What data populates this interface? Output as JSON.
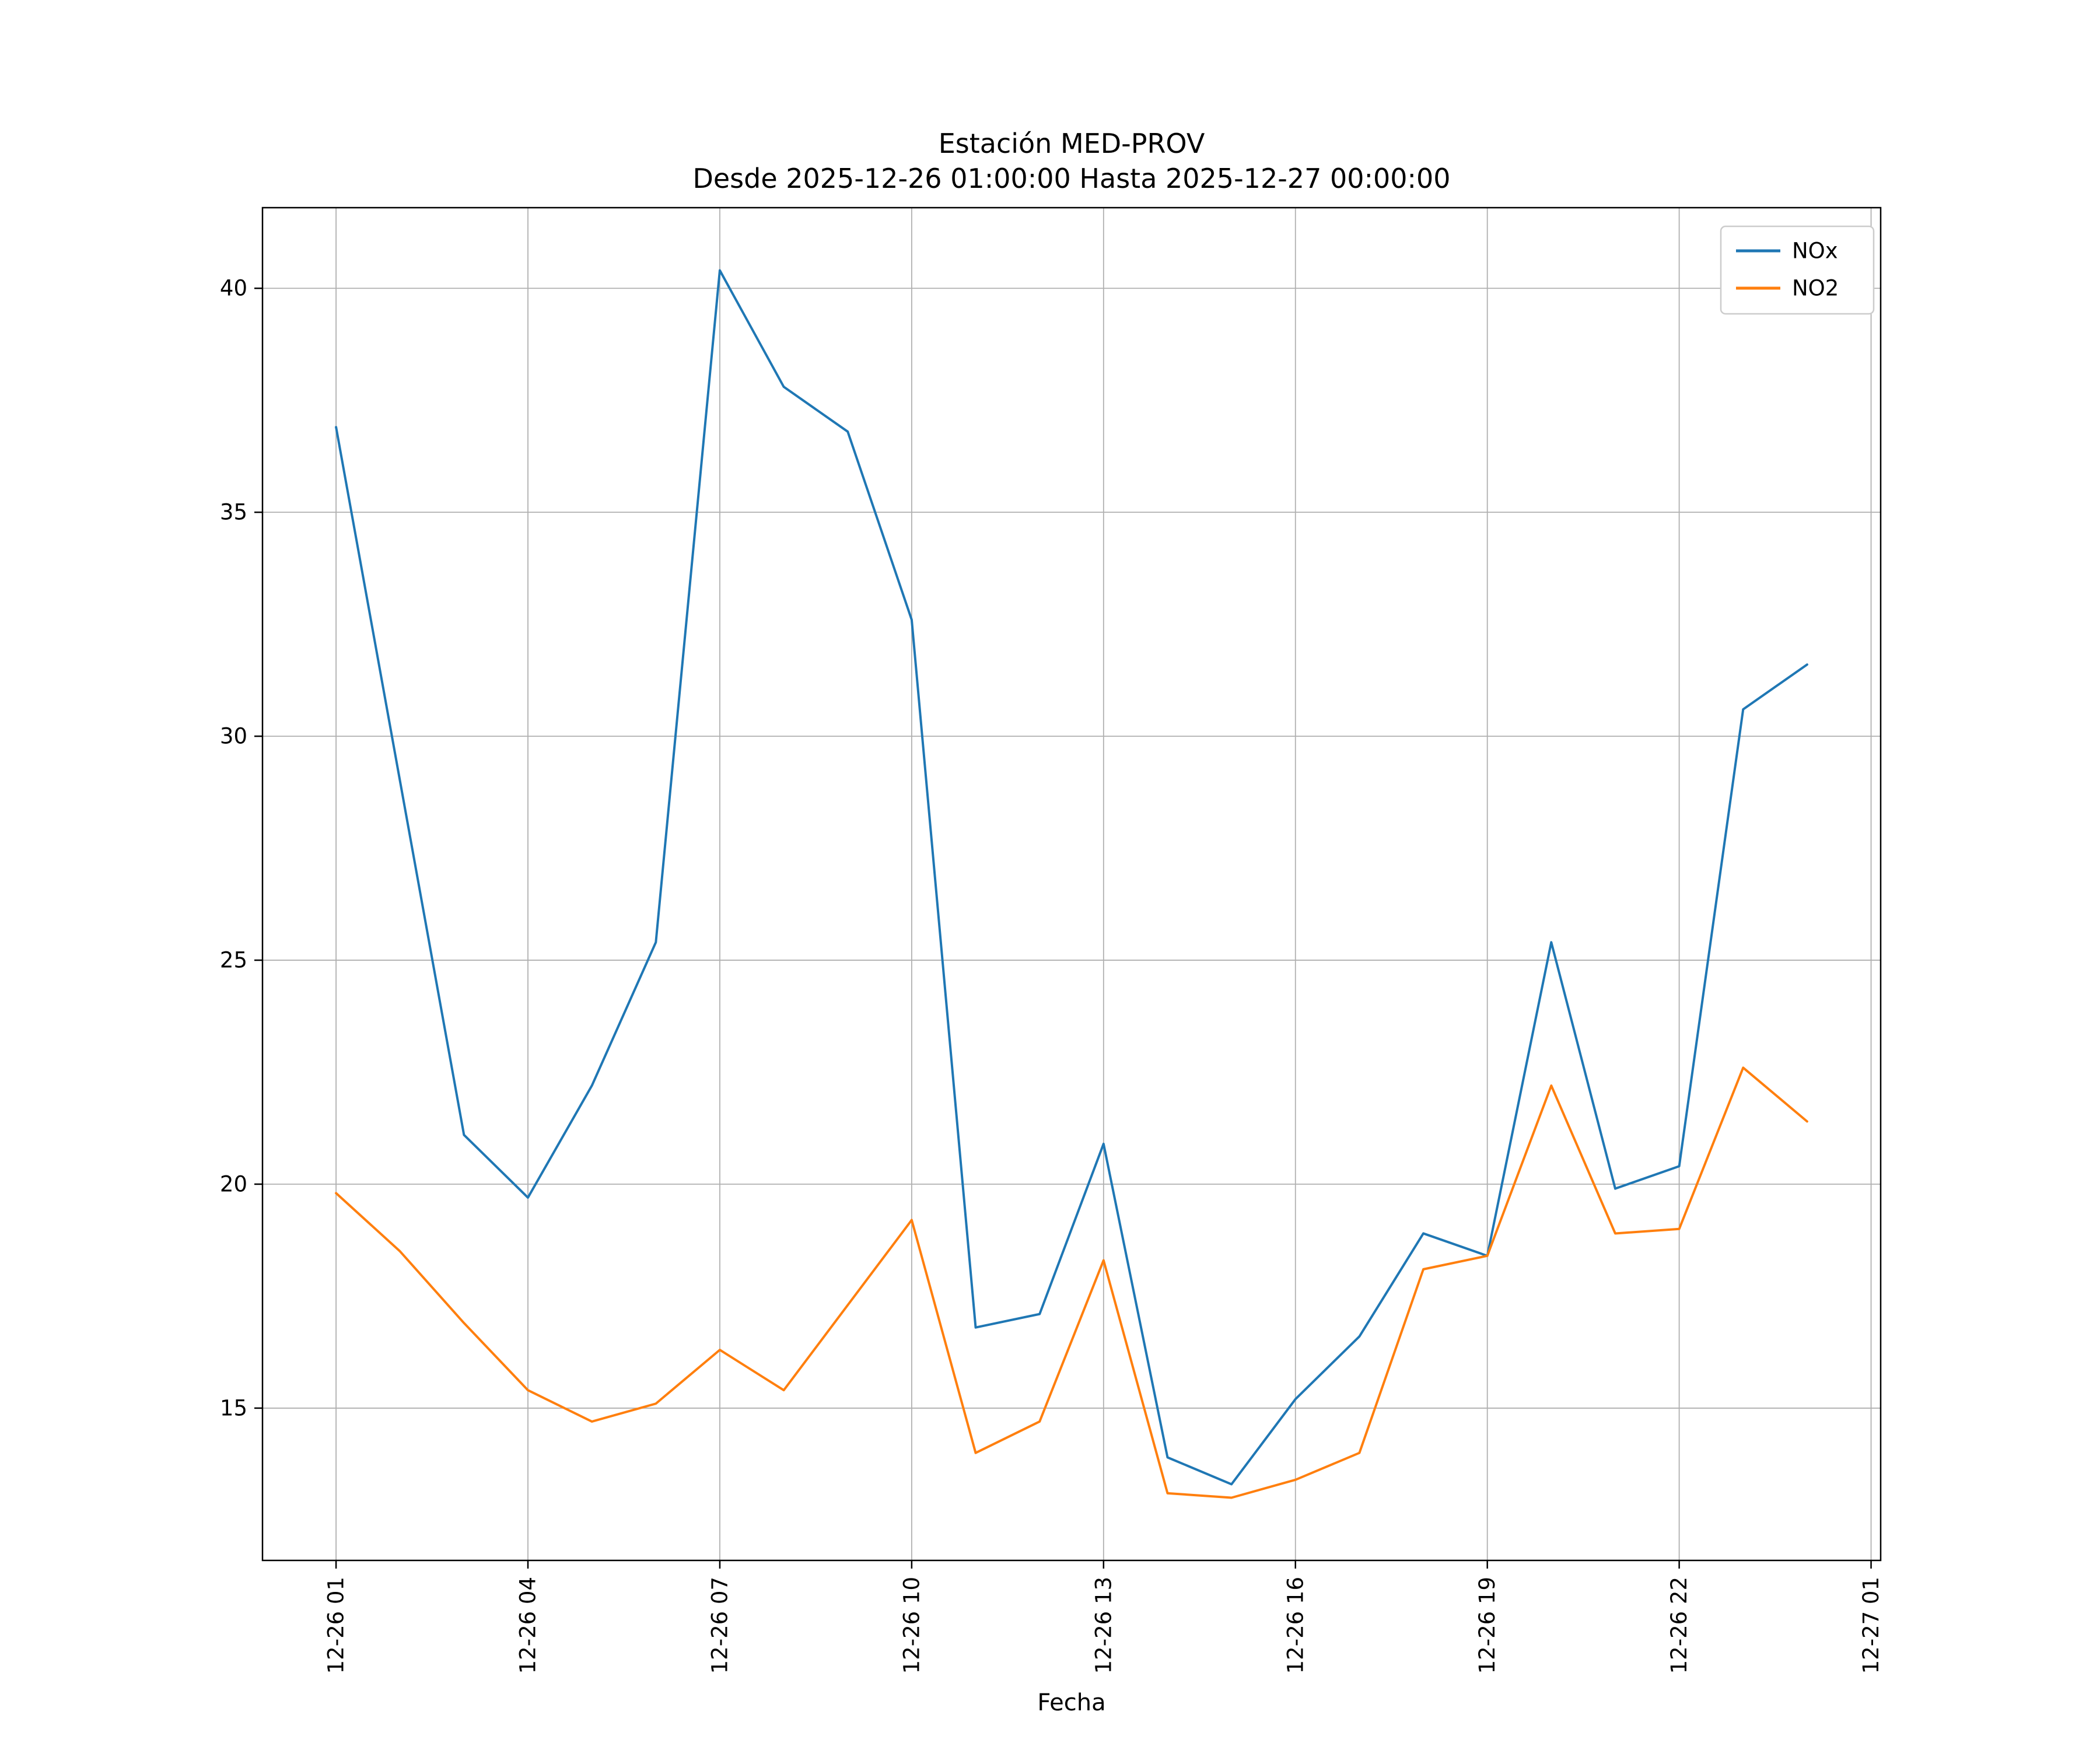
{
  "figure": {
    "title_line1": "Estación MED-PROV",
    "title_line2": "Desde 2025-12-26 01:00:00 Hasta 2025-12-27 00:00:00",
    "xlabel": "Fecha"
  },
  "chart_data": {
    "type": "line",
    "title": "Estación MED-PROV",
    "subtitle": "Desde 2025-12-26 01:00:00 Hasta 2025-12-27 00:00:00",
    "xlabel": "Fecha",
    "ylabel": "",
    "grid": true,
    "legend_position": "upper right",
    "xlim": [
      -0.15,
      25.15
    ],
    "ylim": [
      11.6,
      41.8
    ],
    "x_hours": [
      1,
      2,
      3,
      4,
      5,
      6,
      7,
      8,
      9,
      10,
      11,
      12,
      13,
      14,
      15,
      16,
      17,
      18,
      19,
      20,
      21,
      22,
      23,
      24
    ],
    "x_tick_hours": [
      1,
      4,
      7,
      10,
      13,
      16,
      19,
      22,
      25
    ],
    "x_tick_labels": [
      "12-26 01",
      "12-26 04",
      "12-26 07",
      "12-26 10",
      "12-26 13",
      "12-26 16",
      "12-26 19",
      "12-26 22",
      "12-27 01"
    ],
    "y_ticks": [
      15,
      20,
      25,
      30,
      35,
      40
    ],
    "grid_color": "#b0b0b0",
    "series": [
      {
        "name": "NOx",
        "color": "#1f77b4",
        "values": [
          36.9,
          29.0,
          21.1,
          19.7,
          22.2,
          25.4,
          40.4,
          37.8,
          36.8,
          32.6,
          16.8,
          17.1,
          20.9,
          13.9,
          13.3,
          15.2,
          16.6,
          18.9,
          18.4,
          25.4,
          19.9,
          20.4,
          30.6,
          31.6
        ]
      },
      {
        "name": "NO2",
        "color": "#ff7f0e",
        "values": [
          19.8,
          18.5,
          16.9,
          15.4,
          14.7,
          15.1,
          16.3,
          15.4,
          17.3,
          19.2,
          14.0,
          14.7,
          18.3,
          13.1,
          13.0,
          13.4,
          14.0,
          18.1,
          18.4,
          22.2,
          18.9,
          19.0,
          22.6,
          21.4
        ]
      }
    ]
  }
}
